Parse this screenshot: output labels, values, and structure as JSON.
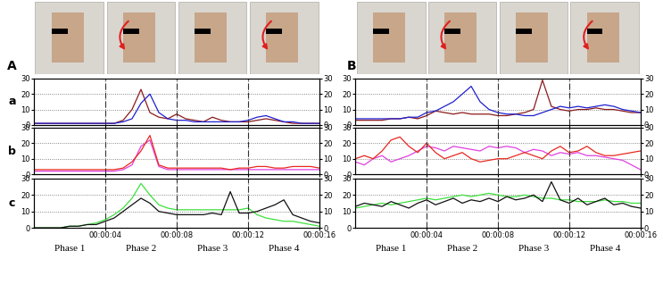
{
  "figure": {
    "columns": [
      {
        "label": "A",
        "phases": [
          "Phase 1",
          "Phase 2",
          "Phase 3",
          "Phase 4"
        ],
        "phase_boundaries": [
          4,
          8,
          12
        ]
      },
      {
        "label": "B",
        "phases": [
          "Phase 1",
          "Phase 2",
          "Phase 3",
          "Phase 4"
        ],
        "phase_boundaries": [
          4,
          8,
          12
        ]
      }
    ]
  },
  "chart_data": [
    {
      "type": "line",
      "label": "a",
      "tick_labels": "y",
      "grid": true,
      "x": [
        0,
        0.5,
        1,
        1.5,
        2,
        2.5,
        3,
        3.5,
        4,
        4.5,
        5,
        5.5,
        6,
        6.5,
        7,
        7.5,
        8,
        8.5,
        9,
        9.5,
        10,
        10.5,
        11,
        11.5,
        12,
        12.5,
        13,
        13.5,
        14,
        14.5,
        15,
        15.5,
        16
      ],
      "xlim": [
        0,
        16
      ],
      "xticks": [
        {
          "value": 4,
          "label": "00:00:04"
        },
        {
          "value": 8,
          "label": "00:00:08"
        },
        {
          "value": 12,
          "label": "00:00:12"
        },
        {
          "value": 16,
          "label": "00:00:16"
        }
      ],
      "ylim": [
        0,
        30
      ],
      "yticks": [
        0,
        10,
        20,
        30
      ],
      "y2lim": [
        0,
        30
      ],
      "y2ticks": [
        0,
        10,
        20,
        30
      ],
      "series": [
        {
          "color": "#8b1a1a",
          "values": [
            1,
            1,
            1,
            1,
            1,
            1,
            1,
            1,
            1,
            1,
            3,
            10,
            23,
            8,
            5,
            4,
            7,
            4,
            3,
            2,
            5,
            3,
            2,
            2,
            2,
            3,
            4,
            3,
            2,
            1,
            1,
            1,
            1
          ]
        },
        {
          "color": "#1f1fd0",
          "values": [
            1,
            1,
            1,
            1,
            1,
            1,
            1,
            1,
            1,
            1,
            2,
            4,
            14,
            20,
            8,
            4,
            3,
            3,
            2,
            2,
            2,
            2,
            2,
            2,
            3,
            5,
            6,
            4,
            2,
            2,
            1,
            1,
            1
          ]
        }
      ]
    },
    {
      "type": "line",
      "label": "b",
      "tick_labels": "y",
      "grid": true,
      "x": [
        0,
        0.5,
        1,
        1.5,
        2,
        2.5,
        3,
        3.5,
        4,
        4.5,
        5,
        5.5,
        6,
        6.5,
        7,
        7.5,
        8,
        8.5,
        9,
        9.5,
        10,
        10.5,
        11,
        11.5,
        12,
        12.5,
        13,
        13.5,
        14,
        14.5,
        15,
        15.5,
        16
      ],
      "xlim": [
        0,
        16
      ],
      "xticks": [
        {
          "value": 4,
          "label": "00:00:04"
        },
        {
          "value": 8,
          "label": "00:00:08"
        },
        {
          "value": 12,
          "label": "00:00:12"
        },
        {
          "value": 16,
          "label": "00:00:16"
        }
      ],
      "ylim": [
        0,
        30
      ],
      "yticks": [
        0,
        10,
        20,
        30
      ],
      "y2lim": [
        0,
        30
      ],
      "y2ticks": [
        0,
        10,
        20,
        30
      ],
      "series": [
        {
          "color": "#e040e0",
          "values": [
            2,
            2,
            2,
            2,
            2,
            2,
            2,
            2,
            2,
            2,
            3,
            6,
            18,
            22,
            5,
            3,
            3,
            3,
            3,
            3,
            3,
            3,
            3,
            3,
            3,
            3,
            3,
            3,
            3,
            3,
            3,
            3,
            3
          ]
        },
        {
          "color": "#e8281f",
          "values": [
            3,
            3,
            3,
            3,
            3,
            3,
            3,
            3,
            3,
            3,
            4,
            8,
            15,
            25,
            6,
            4,
            4,
            4,
            4,
            4,
            4,
            4,
            3,
            4,
            4,
            5,
            5,
            4,
            4,
            5,
            5,
            5,
            4
          ]
        }
      ]
    },
    {
      "type": "line",
      "label": "c",
      "grid": true,
      "x": [
        0,
        0.5,
        1,
        1.5,
        2,
        2.5,
        3,
        3.5,
        4,
        4.5,
        5,
        5.5,
        6,
        6.5,
        7,
        7.5,
        8,
        8.5,
        9,
        9.5,
        10,
        10.5,
        11,
        11.5,
        12,
        12.5,
        13,
        13.5,
        14,
        14.5,
        15,
        15.5,
        16
      ],
      "xlim": [
        0,
        16
      ],
      "xticks": [
        {
          "value": 4,
          "label": "00:00:04"
        },
        {
          "value": 8,
          "label": "00:00:08"
        },
        {
          "value": 12,
          "label": "00:00:12"
        },
        {
          "value": 16,
          "label": "00:00:16"
        }
      ],
      "ylim": [
        0,
        30
      ],
      "yticks": [
        0,
        10,
        20,
        30
      ],
      "y2lim": [
        0,
        30
      ],
      "y2ticks": [
        0,
        10,
        20,
        30
      ],
      "series": [
        {
          "color": "#3de03d",
          "values": [
            0,
            0,
            0,
            0,
            1,
            1,
            2,
            3,
            5,
            8,
            12,
            18,
            27,
            20,
            14,
            12,
            11,
            11,
            11,
            11,
            11,
            11,
            11,
            11,
            12,
            8,
            6,
            5,
            4,
            4,
            3,
            2,
            1
          ]
        },
        {
          "color": "#111111",
          "values": [
            0,
            0,
            0,
            0,
            1,
            1,
            2,
            2,
            4,
            6,
            10,
            14,
            18,
            15,
            10,
            9,
            8,
            8,
            8,
            8,
            9,
            8,
            22,
            9,
            9,
            10,
            12,
            14,
            17,
            8,
            6,
            4,
            3
          ]
        }
      ]
    },
    {
      "type": "line",
      "tick_labels": "y",
      "grid": true,
      "x": [
        0,
        0.5,
        1,
        1.5,
        2,
        2.5,
        3,
        3.5,
        4,
        4.5,
        5,
        5.5,
        6,
        6.5,
        7,
        7.5,
        8,
        8.5,
        9,
        9.5,
        10,
        10.5,
        11,
        11.5,
        12,
        12.5,
        13,
        13.5,
        14,
        14.5,
        15,
        15.5,
        16
      ],
      "xlim": [
        0,
        16
      ],
      "xticks": [
        {
          "value": 4,
          "label": "00:00:04"
        },
        {
          "value": 8,
          "label": "00:00:08"
        },
        {
          "value": 12,
          "label": "00:00:12"
        },
        {
          "value": 16,
          "label": "00:00:16"
        }
      ],
      "ylim": [
        0,
        30
      ],
      "yticks": [
        0,
        10,
        20,
        30
      ],
      "y2lim": [
        0,
        30
      ],
      "y2ticks": [
        0,
        10,
        20,
        30
      ],
      "series": [
        {
          "color": "#8b1a1a",
          "values": [
            3,
            3,
            3,
            3,
            4,
            4,
            5,
            4,
            6,
            9,
            8,
            7,
            8,
            7,
            7,
            7,
            6,
            6,
            7,
            8,
            10,
            29,
            12,
            10,
            9,
            10,
            10,
            11,
            10,
            10,
            9,
            8,
            8
          ]
        },
        {
          "color": "#1f1fd0",
          "values": [
            4,
            4,
            4,
            4,
            4,
            4,
            5,
            5,
            8,
            9,
            12,
            15,
            20,
            25,
            15,
            10,
            8,
            7,
            7,
            6,
            6,
            8,
            10,
            12,
            11,
            12,
            11,
            12,
            13,
            12,
            10,
            9,
            8
          ]
        }
      ]
    },
    {
      "type": "line",
      "tick_labels": "y",
      "grid": true,
      "x": [
        0,
        0.5,
        1,
        1.5,
        2,
        2.5,
        3,
        3.5,
        4,
        4.5,
        5,
        5.5,
        6,
        6.5,
        7,
        7.5,
        8,
        8.5,
        9,
        9.5,
        10,
        10.5,
        11,
        11.5,
        12,
        12.5,
        13,
        13.5,
        14,
        14.5,
        15,
        15.5,
        16
      ],
      "xlim": [
        0,
        16
      ],
      "xticks": [
        {
          "value": 4,
          "label": "00:00:04"
        },
        {
          "value": 8,
          "label": "00:00:08"
        },
        {
          "value": 12,
          "label": "00:00:12"
        },
        {
          "value": 16,
          "label": "00:00:16"
        }
      ],
      "ylim": [
        0,
        30
      ],
      "yticks": [
        0,
        10,
        20,
        30
      ],
      "y2lim": [
        0,
        30
      ],
      "y2ticks": [
        0,
        10,
        20,
        30
      ],
      "series": [
        {
          "color": "#e040e0",
          "values": [
            8,
            6,
            10,
            12,
            8,
            10,
            12,
            15,
            18,
            17,
            15,
            18,
            17,
            16,
            15,
            18,
            17,
            18,
            17,
            14,
            16,
            15,
            12,
            14,
            13,
            14,
            12,
            12,
            11,
            10,
            9,
            6,
            3
          ]
        },
        {
          "color": "#e8281f",
          "values": [
            10,
            12,
            10,
            15,
            22,
            24,
            18,
            14,
            20,
            14,
            10,
            12,
            14,
            10,
            8,
            9,
            10,
            10,
            12,
            14,
            12,
            10,
            15,
            18,
            14,
            15,
            18,
            14,
            12,
            12,
            13,
            14,
            15
          ]
        }
      ]
    },
    {
      "type": "line",
      "grid": true,
      "x": [
        0,
        0.5,
        1,
        1.5,
        2,
        2.5,
        3,
        3.5,
        4,
        4.5,
        5,
        5.5,
        6,
        6.5,
        7,
        7.5,
        8,
        8.5,
        9,
        9.5,
        10,
        10.5,
        11,
        11.5,
        12,
        12.5,
        13,
        13.5,
        14,
        14.5,
        15,
        15.5,
        16
      ],
      "xlim": [
        0,
        16
      ],
      "xticks": [
        {
          "value": 4,
          "label": "00:00:04"
        },
        {
          "value": 8,
          "label": "00:00:08"
        },
        {
          "value": 12,
          "label": "00:00:12"
        },
        {
          "value": 16,
          "label": "00:00:16"
        }
      ],
      "ylim": [
        0,
        30
      ],
      "yticks": [
        0,
        10,
        20,
        30
      ],
      "y2lim": [
        0,
        30
      ],
      "y2ticks": [
        0,
        10,
        20,
        30
      ],
      "series": [
        {
          "color": "#3de03d",
          "values": [
            12,
            13,
            14,
            15,
            14,
            15,
            16,
            17,
            18,
            17,
            18,
            19,
            20,
            19,
            20,
            21,
            20,
            19,
            19,
            20,
            19,
            18,
            18,
            17,
            17,
            16,
            16,
            16,
            17,
            16,
            16,
            15,
            15
          ]
        },
        {
          "color": "#111111",
          "values": [
            13,
            15,
            14,
            13,
            16,
            14,
            12,
            15,
            17,
            14,
            16,
            18,
            15,
            17,
            16,
            18,
            16,
            19,
            17,
            18,
            20,
            16,
            28,
            17,
            15,
            18,
            14,
            16,
            18,
            14,
            15,
            13,
            12
          ]
        }
      ]
    }
  ]
}
